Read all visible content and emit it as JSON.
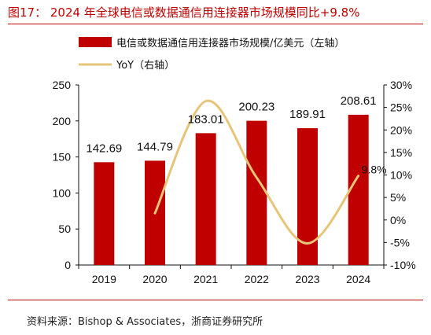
{
  "figure": {
    "title": "图17：  2024 年全球电信或数据通信用连接器市场规模同比+9.8%",
    "source": "资料来源：Bishop & Associates，浙商证券研究所",
    "accent_color": "#c00000",
    "line_color": "#e6c478"
  },
  "chart_data": {
    "type": "bar",
    "categories": [
      "2019",
      "2020",
      "2021",
      "2022",
      "2023",
      "2024"
    ],
    "series": [
      {
        "name": "电信或数据通信用连接器市场规模/亿美元（左轴）",
        "type": "bar",
        "axis": "left",
        "values": [
          142.69,
          144.79,
          183.01,
          200.23,
          189.91,
          208.61
        ],
        "labels": [
          "142.69",
          "144.79",
          "183.01",
          "200.23",
          "189.91",
          "208.61"
        ],
        "color": "#c00000"
      },
      {
        "name": "YoY（右轴）",
        "type": "line",
        "axis": "right",
        "smooth": true,
        "x": [
          "2020",
          "2021",
          "2022",
          "2023",
          "2024"
        ],
        "values": [
          1.5,
          26.4,
          9.4,
          -5.2,
          9.8
        ],
        "labels": [
          "",
          "",
          "",
          "",
          "9.8%"
        ],
        "color": "#e6c478"
      }
    ],
    "y_left": {
      "lim": [
        0,
        250
      ],
      "ticks": [
        0,
        50,
        100,
        150,
        200,
        250
      ],
      "tick_labels": [
        "0",
        "50",
        "100",
        "150",
        "200",
        "250"
      ]
    },
    "y_right": {
      "lim": [
        -10,
        30
      ],
      "ticks": [
        -10,
        -5,
        0,
        5,
        10,
        15,
        20,
        25,
        30
      ],
      "tick_labels": [
        "-10%",
        "-5%",
        "0%",
        "5%",
        "10%",
        "15%",
        "20%",
        "25%",
        "30%"
      ]
    },
    "legend": "top-left",
    "grid": false
  }
}
